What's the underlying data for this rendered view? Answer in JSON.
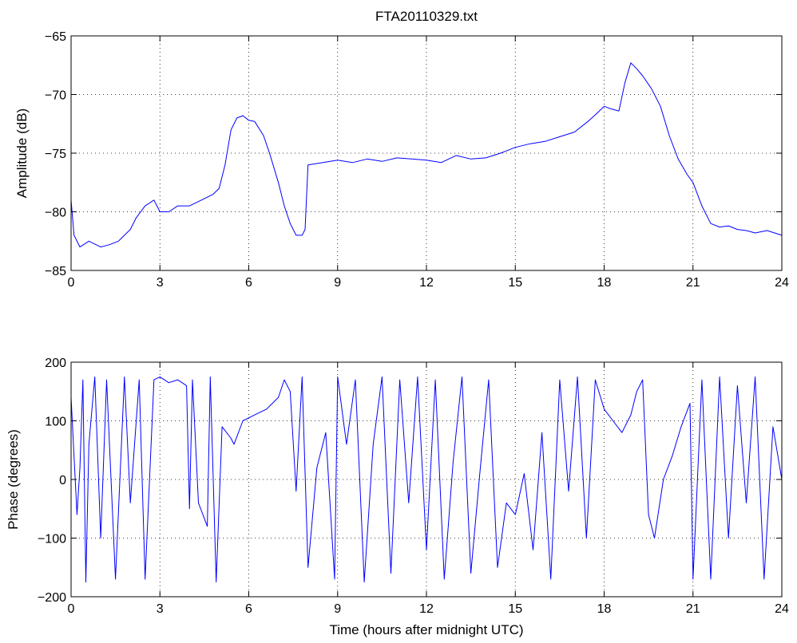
{
  "figure": {
    "background": "#ffffff"
  },
  "chart_data": [
    {
      "type": "line",
      "title": "FTA20110329.txt",
      "xlabel": "",
      "ylabel": "Amplitude (dB)",
      "xlim": [
        0,
        24
      ],
      "ylim": [
        -85,
        -65
      ],
      "xticks": [
        "0",
        "3",
        "6",
        "9",
        "12",
        "15",
        "18",
        "21",
        "24"
      ],
      "yticks": [
        "-85",
        "-80",
        "-75",
        "-70",
        "-65"
      ],
      "grid": true,
      "series": [
        {
          "color": "#0000ff",
          "x": [
            0,
            0.1,
            0.3,
            0.6,
            1,
            1.3,
            1.6,
            1.8,
            2.0,
            2.2,
            2.5,
            2.8,
            3.0,
            3.3,
            3.6,
            4.0,
            4.4,
            4.8,
            5.0,
            5.2,
            5.4,
            5.6,
            5.8,
            6.0,
            6.2,
            6.5,
            6.7,
            7.0,
            7.2,
            7.4,
            7.6,
            7.8,
            7.9,
            8.0,
            8.5,
            9,
            9.5,
            10,
            10.5,
            11,
            11.5,
            12,
            12.5,
            13,
            13.5,
            14,
            14.5,
            15,
            15.5,
            16,
            16.5,
            17,
            17.5,
            17.8,
            18.0,
            18.2,
            18.5,
            18.7,
            18.9,
            19.1,
            19.3,
            19.6,
            19.9,
            20.2,
            20.5,
            20.8,
            21.0,
            21.3,
            21.6,
            21.9,
            22.2,
            22.5,
            22.8,
            23.1,
            23.5,
            24
          ],
          "y": [
            -79,
            -82,
            -83,
            -82.5,
            -83,
            -82.8,
            -82.5,
            -82,
            -81.5,
            -80.5,
            -79.5,
            -79,
            -80,
            -80,
            -79.5,
            -79.5,
            -79,
            -78.5,
            -78,
            -76,
            -73,
            -72,
            -71.8,
            -72.2,
            -72.3,
            -73.5,
            -75,
            -77.5,
            -79.5,
            -81,
            -82,
            -82,
            -81.5,
            -76,
            -75.8,
            -75.6,
            -75.8,
            -75.5,
            -75.7,
            -75.4,
            -75.5,
            -75.6,
            -75.8,
            -75.2,
            -75.5,
            -75.4,
            -75.0,
            -74.5,
            -74.2,
            -74.0,
            -73.6,
            -73.2,
            -72.2,
            -71.5,
            -71,
            -71.2,
            -71.4,
            -69,
            -67.3,
            -67.8,
            -68.4,
            -69.5,
            -71.0,
            -73.5,
            -75.5,
            -76.8,
            -77.5,
            -79.5,
            -81,
            -81.3,
            -81.2,
            -81.5,
            -81.6,
            -81.8,
            -81.6,
            -82
          ]
        }
      ]
    },
    {
      "type": "line",
      "title": "",
      "xlabel": "Time (hours after midnight UTC)",
      "ylabel": "Phase (degrees)",
      "xlim": [
        0,
        24
      ],
      "ylim": [
        -200,
        200
      ],
      "xticks": [
        "0",
        "3",
        "6",
        "9",
        "12",
        "15",
        "18",
        "21",
        "24"
      ],
      "yticks": [
        "-200",
        "-100",
        "0",
        "100",
        "200"
      ],
      "grid": true,
      "series": [
        {
          "color": "#0000ff",
          "x": [
            0,
            0.1,
            0.2,
            0.3,
            0.4,
            0.5,
            0.6,
            0.8,
            1.0,
            1.2,
            1.5,
            1.8,
            2.0,
            2.3,
            2.5,
            2.8,
            3.0,
            3.3,
            3.6,
            3.9,
            4.0,
            4.1,
            4.3,
            4.6,
            4.7,
            4.9,
            5.1,
            5.4,
            5.5,
            5.8,
            6.2,
            6.6,
            7.0,
            7.2,
            7.4,
            7.6,
            7.8,
            8.0,
            8.3,
            8.6,
            8.9,
            9.0,
            9.3,
            9.6,
            9.9,
            10.2,
            10.5,
            10.8,
            11.1,
            11.4,
            11.7,
            12.0,
            12.3,
            12.6,
            12.9,
            13.2,
            13.5,
            13.8,
            14.1,
            14.4,
            14.7,
            15.0,
            15.3,
            15.6,
            15.9,
            16.2,
            16.5,
            16.8,
            17.1,
            17.4,
            17.7,
            18.0,
            18.3,
            18.6,
            18.9,
            19.1,
            19.3,
            19.5,
            19.7,
            20.0,
            20.3,
            20.6,
            20.9,
            21.0,
            21.3,
            21.6,
            21.9,
            22.2,
            22.5,
            22.8,
            23.1,
            23.4,
            23.7,
            24
          ],
          "y": [
            140,
            40,
            -60,
            20,
            170,
            -175,
            60,
            175,
            -100,
            170,
            -170,
            175,
            -40,
            170,
            -170,
            170,
            175,
            165,
            170,
            160,
            -50,
            170,
            -40,
            -80,
            175,
            -175,
            90,
            70,
            60,
            100,
            110,
            120,
            140,
            170,
            150,
            -20,
            175,
            -150,
            20,
            80,
            -170,
            175,
            60,
            170,
            -175,
            60,
            175,
            -160,
            170,
            -40,
            175,
            -120,
            170,
            -170,
            30,
            175,
            -160,
            10,
            170,
            -150,
            -40,
            -60,
            10,
            -120,
            80,
            -170,
            170,
            -20,
            175,
            -100,
            170,
            120,
            100,
            80,
            110,
            150,
            170,
            -60,
            -100,
            0,
            40,
            90,
            130,
            -170,
            170,
            -170,
            175,
            -100,
            160,
            -40,
            175,
            -170,
            90,
            0
          ]
        }
      ]
    }
  ]
}
